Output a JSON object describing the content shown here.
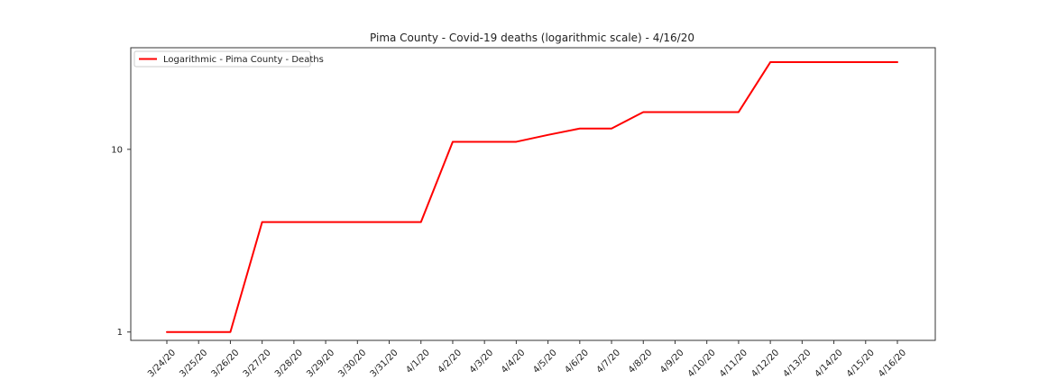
{
  "chart_data": {
    "type": "line",
    "title": "Pima County - Covid-19 deaths (logarithmic scale) - 4/16/20",
    "xlabel": "",
    "ylabel": "",
    "y_scale": "log",
    "ylim": [
      0.9,
      36
    ],
    "y_ticks": [
      1,
      10
    ],
    "y_tick_labels": [
      "1",
      "10"
    ],
    "grid": false,
    "legend_position": "top-left",
    "line_color": "#ff0000",
    "categories": [
      "3/24/20",
      "3/25/20",
      "3/26/20",
      "3/27/20",
      "3/28/20",
      "3/29/20",
      "3/30/20",
      "3/31/20",
      "4/1/20",
      "4/2/20",
      "4/3/20",
      "4/4/20",
      "4/5/20",
      "4/6/20",
      "4/7/20",
      "4/8/20",
      "4/9/20",
      "4/10/20",
      "4/11/20",
      "4/12/20",
      "4/13/20",
      "4/14/20",
      "4/15/20",
      "4/16/20"
    ],
    "series": [
      {
        "name": "Logarithmic - Pima County - Deaths",
        "values": [
          1,
          1,
          1,
          4,
          4,
          4,
          4,
          4,
          4,
          11,
          11,
          11,
          12,
          13,
          13,
          16,
          16,
          16,
          16,
          30,
          30,
          30,
          30,
          30
        ]
      }
    ]
  }
}
